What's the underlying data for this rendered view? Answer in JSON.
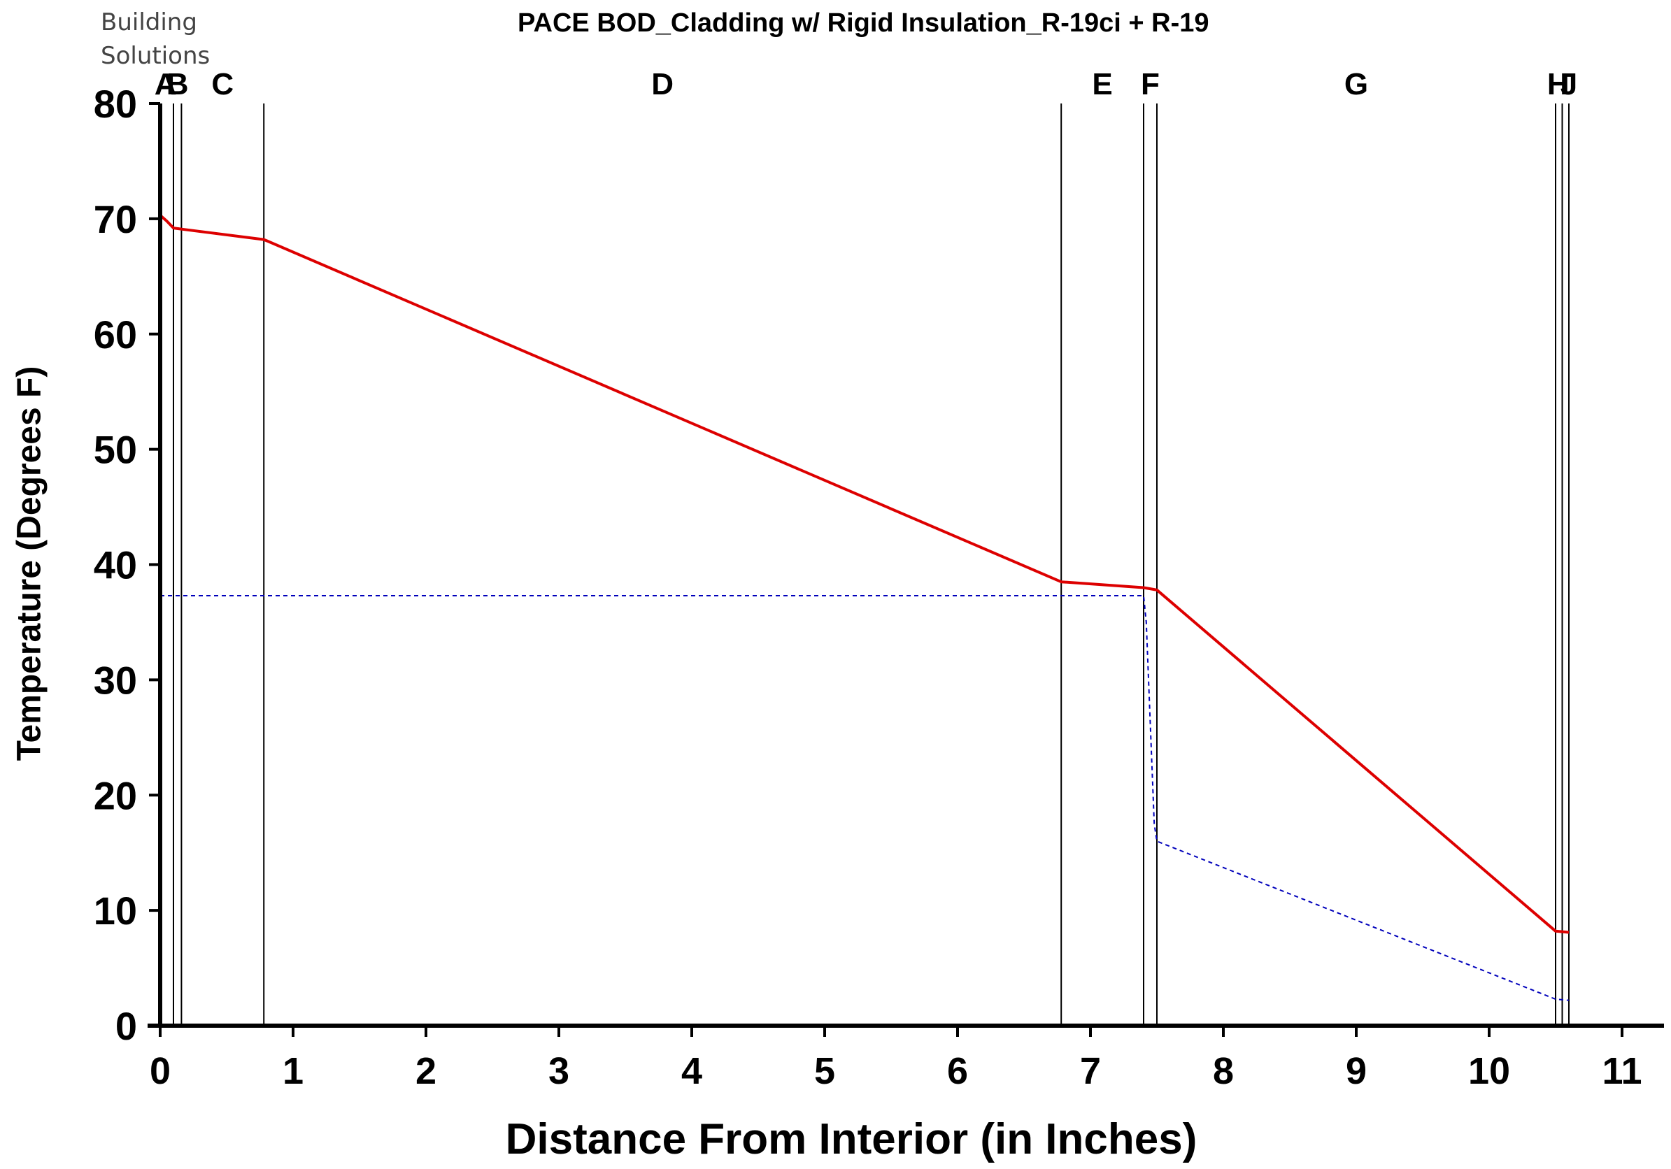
{
  "branding": {
    "line1": "Building",
    "line2": "Solutions"
  },
  "chart_data": {
    "type": "line",
    "title": "PACE BOD_Cladding w/ Rigid Insulation_R-19ci + R-19",
    "xlabel": "Distance From Interior (in Inches)",
    "ylabel": "Temperature (Degrees F)",
    "xlim": [
      0,
      11.3
    ],
    "ylim": [
      0,
      80
    ],
    "x_ticks": [
      0,
      1,
      2,
      3,
      4,
      5,
      6,
      7,
      8,
      9,
      10,
      11
    ],
    "y_ticks": [
      0,
      10,
      20,
      30,
      40,
      50,
      60,
      70,
      80
    ],
    "grid": false,
    "layers": [
      {
        "label": "A",
        "boundary": 0.0
      },
      {
        "label": "B",
        "boundary": 0.1
      },
      {
        "label": "C",
        "boundary": 0.16
      },
      {
        "label": "D",
        "boundary": 0.78
      },
      {
        "label": "E",
        "boundary": 6.78
      },
      {
        "label": "F",
        "boundary": 7.4
      },
      {
        "label": "G",
        "boundary": 7.5
      },
      {
        "label": "H",
        "boundary": 10.5
      },
      {
        "label": "I",
        "boundary": 10.55
      },
      {
        "label": "J",
        "boundary": 10.6
      }
    ],
    "label_x": [
      0.04,
      0.13,
      0.47,
      3.78,
      7.09,
      7.45,
      9.0,
      10.52,
      10.565,
      10.6
    ],
    "series": [
      {
        "style": "solid",
        "color": "#dd0000",
        "x": [
          0.0,
          0.05,
          0.1,
          0.16,
          0.78,
          6.78,
          7.4,
          7.5,
          10.5,
          10.6
        ],
        "y": [
          70.3,
          69.8,
          69.2,
          69.1,
          68.2,
          38.5,
          38.0,
          37.8,
          8.2,
          8.1
        ]
      },
      {
        "style": "dashed",
        "color": "#0000bb",
        "x": [
          0.0,
          7.4,
          7.42,
          7.48,
          7.5,
          10.5,
          10.6
        ],
        "y": [
          37.3,
          37.3,
          35.0,
          17.5,
          16.0,
          2.3,
          2.2
        ]
      }
    ]
  }
}
